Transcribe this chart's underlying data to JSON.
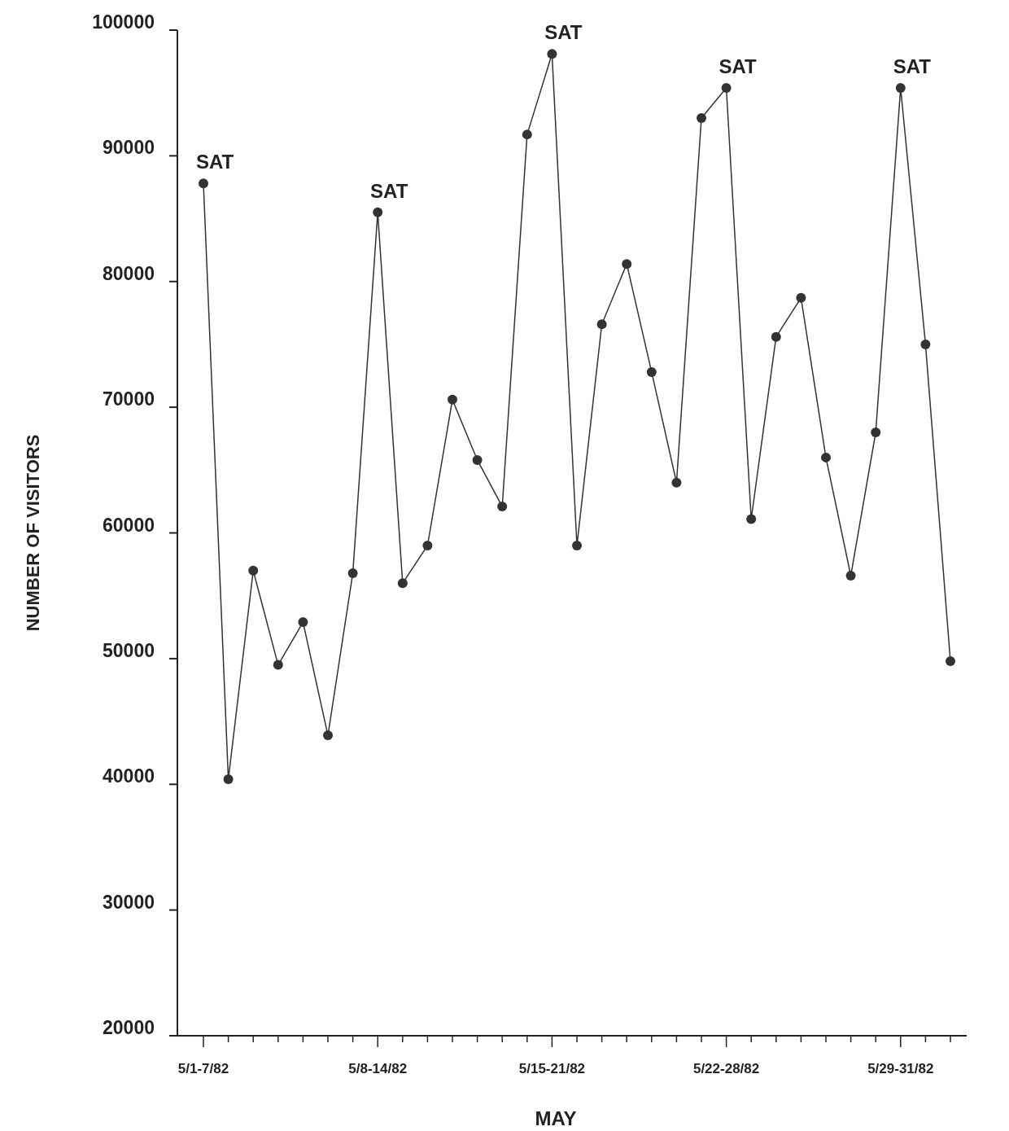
{
  "chart_data": {
    "type": "line",
    "xlabel": "MAY",
    "ylabel": "NUMBER OF VISITORS",
    "categories": [
      "5/1-7/82",
      null,
      null,
      null,
      null,
      null,
      null,
      "5/8-14/82",
      null,
      null,
      null,
      null,
      null,
      null,
      "5/15-21/82",
      null,
      null,
      null,
      null,
      null,
      null,
      "5/22-28/82",
      null,
      null,
      null,
      null,
      null,
      null,
      "5/29-31/82",
      null,
      null
    ],
    "series": [
      {
        "color": "#333333",
        "values": [
          87800,
          40400,
          57000,
          49500,
          52900,
          43900,
          56800,
          85500,
          56000,
          59000,
          70600,
          65800,
          62100,
          91700,
          98100,
          59000,
          76600,
          81400,
          72800,
          64000,
          93000,
          95400,
          61100,
          75600,
          78700,
          66000,
          56600,
          68000,
          95400,
          75000,
          49800
        ]
      }
    ],
    "ylim": [
      20000,
      100000
    ],
    "yticks": [
      20000,
      30000,
      40000,
      50000,
      60000,
      70000,
      80000,
      90000,
      100000
    ],
    "annotations": [
      {
        "text": "SAT",
        "x": "5/1-7/82",
        "y": 87800
      },
      {
        "text": "SAT",
        "x": "5/8-14/82",
        "y": 85500
      },
      {
        "text": "SAT",
        "x": "5/15-21/82",
        "y": 98100
      },
      {
        "text": "SAT",
        "x": "5/22-28/82",
        "y": 95400
      },
      {
        "text": "SAT",
        "x": "5/29-31/82",
        "y": 95400
      }
    ],
    "grid": false,
    "marker": "circle",
    "line_style": "solid"
  }
}
